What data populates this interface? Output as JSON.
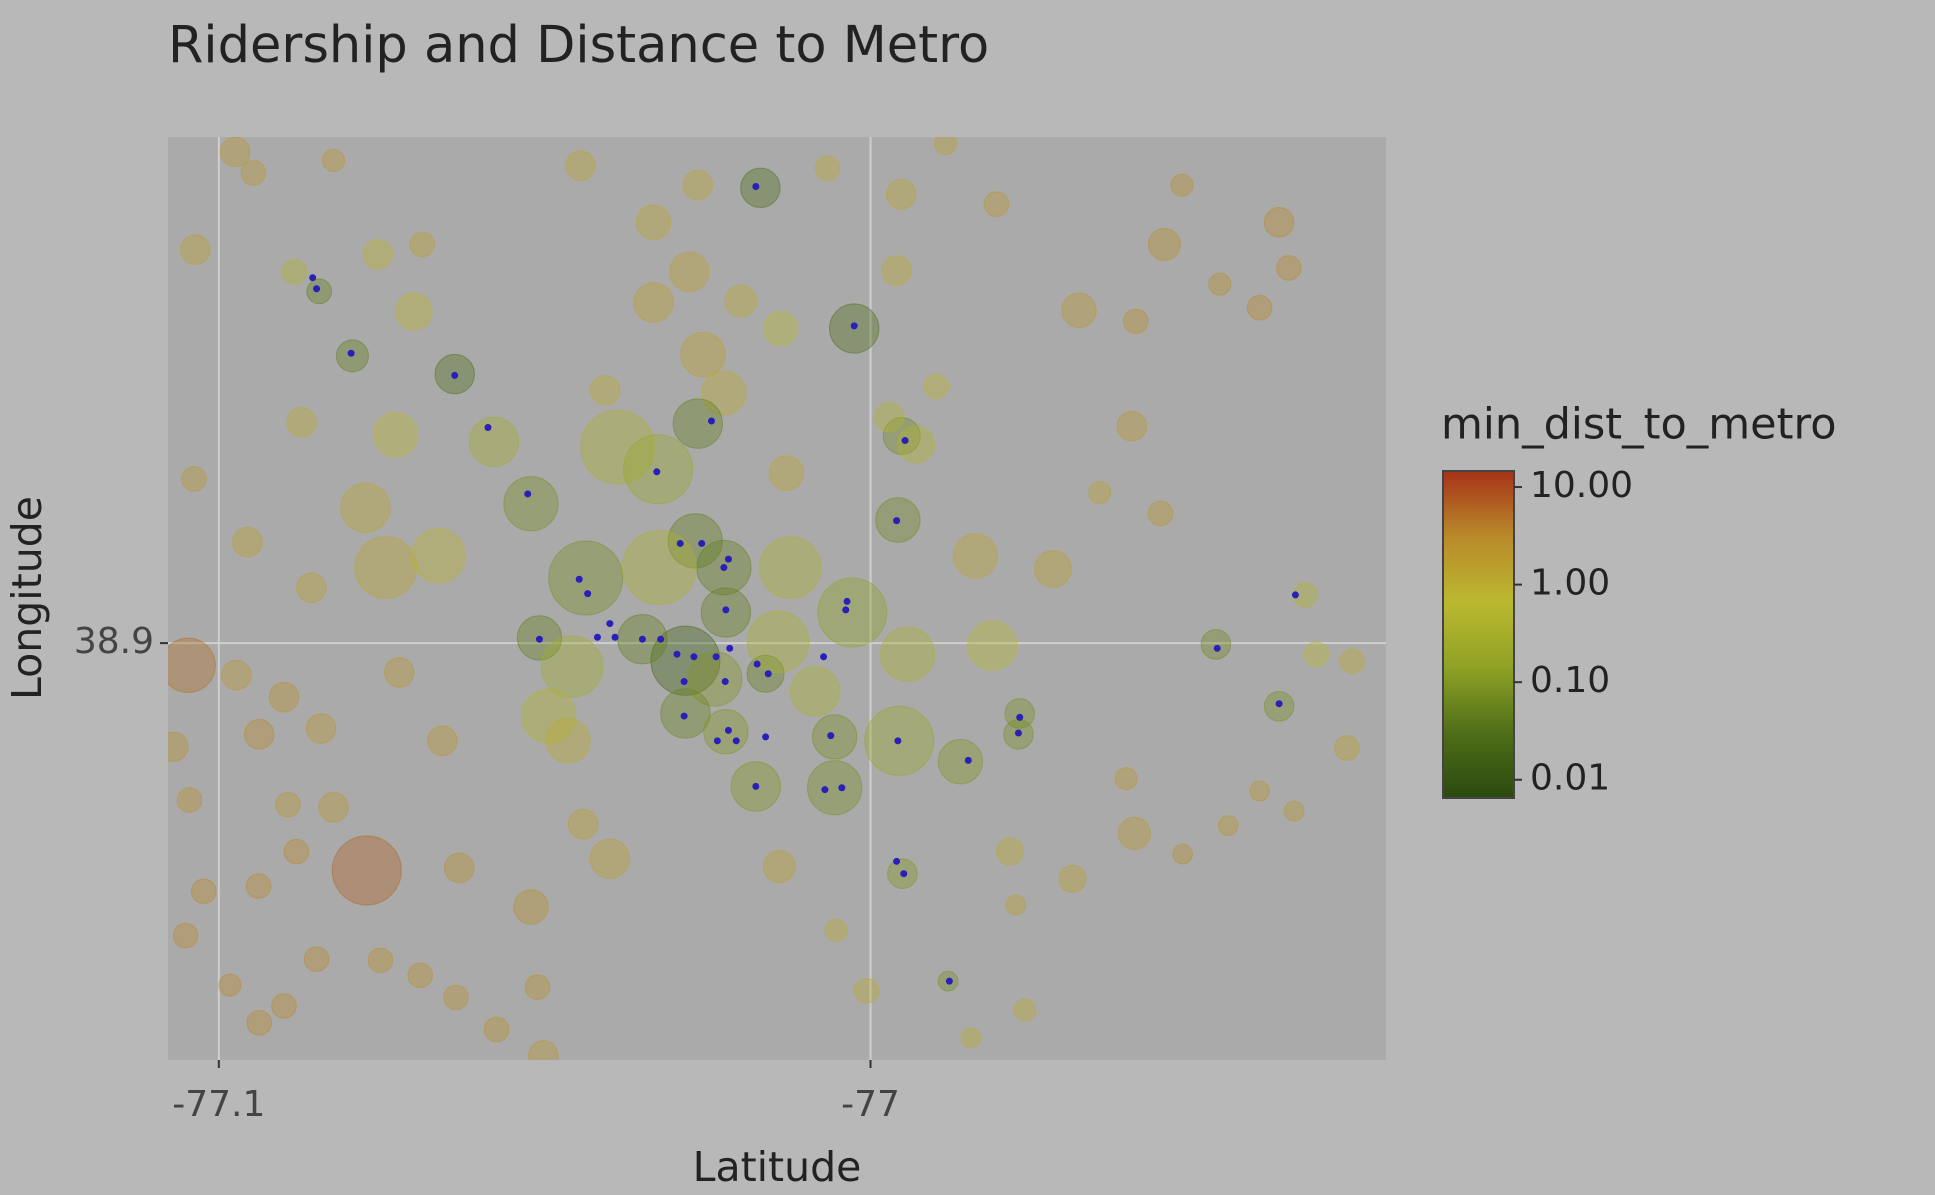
{
  "chart_data": {
    "type": "scatter",
    "title": "Ridership and Distance to Metro",
    "xlabel": "Latitude",
    "ylabel": "Longitude",
    "xlim": [
      -77.1078,
      -76.9209
    ],
    "ylim": [
      38.836,
      38.9777
    ],
    "xticks": [
      -77.1,
      -77.0
    ],
    "yticks": [
      38.9
    ],
    "grid": true,
    "x": [
      -77.0975,
      -77.0947,
      -77.1036,
      -77.0884,
      -77.0846,
      -77.0795,
      -77.0638,
      -77.0756,
      -77.0688,
      -77.0701,
      -77.0873,
      -77.0729,
      -77.0578,
      -77.0775,
      -77.0521,
      -77.1038,
      -77.0956,
      -77.0858,
      -77.0744,
      -77.0663,
      -77.1047,
      -77.0973,
      -77.09,
      -77.0843,
      -77.0938,
      -77.0773,
      -77.0881,
      -77.0939,
      -77.1023,
      -77.1051,
      -77.0983,
      -77.09,
      -77.0938,
      -77.085,
      -77.0752,
      -77.0691,
      -77.0636,
      -77.0574,
      -77.0511,
      -77.0502,
      -77.0521,
      -77.0631,
      -77.0657,
      -77.0723,
      -77.0824,
      -77.0894,
      -77.107,
      -77.1045,
      -77.0437,
      -77.0508,
      -77.0458,
      -77.0494,
      -77.0464,
      -77.04,
      -77.0441,
      -77.0445,
      -77.0333,
      -77.0278,
      -77.0333,
      -77.0257,
      -77.0225,
      -77.0265,
      -77.0169,
      -77.0066,
      -76.9953,
      -77.0025,
      -76.996,
      -77.0138,
      -77.0199,
      -77.0388,
      -77.0326,
      -77.0265,
      -77.0407,
      -77.0129,
      -77.0269,
      -77.0225,
      -77.0324,
      -77.0222,
      -77.0284,
      -77.035,
      -77.0239,
      -77.0161,
      -77.0284,
      -77.0222,
      -77.0176,
      -77.0123,
      -77.0142,
      -77.0085,
      -77.0055,
      -77.0055,
      -77.0028,
      -76.9956,
      -76.9952,
      -76.9958,
      -76.9971,
      -76.993,
      -76.9899,
      -76.9943,
      -76.9862,
      -76.9951,
      -76.9881,
      -76.9839,
      -76.9813,
      -76.972,
      -76.9771,
      -76.9773,
      -76.968,
      -76.9599,
      -76.9549,
      -76.9522,
      -76.9464,
      -76.9403,
      -76.9373,
      -76.9358,
      -76.9555,
      -76.9648,
      -76.947,
      -76.9373,
      -76.9333,
      -76.9316,
      -76.9261,
      -76.9269,
      -76.9403,
      -76.9451,
      -76.9521,
      -76.9595,
      -76.9608,
      -76.969,
      -76.9777,
      -76.9786,
      -76.9763,
      -77.0006,
      -77.0053,
      -77.014,
      -76.9846,
      -76.9885,
      -76.9807,
      -76.9593,
      -76.935,
      -77.0824
    ],
    "y": [
      38.9754,
      38.9722,
      38.9604,
      38.957,
      38.954,
      38.9441,
      38.9413,
      38.9597,
      38.9612,
      38.9509,
      38.9339,
      38.932,
      38.9309,
      38.9208,
      38.9214,
      38.9252,
      38.9155,
      38.9085,
      38.9116,
      38.9134,
      38.8966,
      38.8951,
      38.8917,
      38.8869,
      38.886,
      38.8651,
      38.868,
      38.8627,
      38.8619,
      38.8551,
      38.8475,
      38.8443,
      38.8417,
      38.8515,
      38.8513,
      38.849,
      38.8456,
      38.8407,
      38.8472,
      38.8367,
      38.8595,
      38.8655,
      38.885,
      38.8955,
      38.8748,
      38.8752,
      38.8841,
      38.8759,
      38.91,
      38.9008,
      38.8964,
      38.8888,
      38.885,
      38.8669,
      38.8722,
      38.9733,
      38.9646,
      38.957,
      38.9523,
      38.9443,
      38.9384,
      38.9703,
      38.9699,
      38.9729,
      38.9689,
      38.9483,
      38.9572,
      38.9483,
      38.9525,
      38.9301,
      38.9267,
      38.9337,
      38.9388,
      38.9261,
      38.9157,
      38.9116,
      38.9116,
      38.9047,
      38.8973,
      38.9006,
      38.8945,
      38.8953,
      38.8892,
      38.8864,
      38.878,
      38.9116,
      38.9002,
      38.8926,
      38.8856,
      38.8778,
      38.9047,
      38.885,
      38.9318,
      38.9189,
      38.9347,
      38.9305,
      38.9394,
      38.8983,
      38.8818,
      38.8646,
      38.8481,
      38.9134,
      38.8996,
      38.9114,
      38.8892,
      38.886,
      38.9511,
      38.9333,
      38.9612,
      38.9703,
      38.9551,
      38.9515,
      38.9646,
      38.9576,
      38.9199,
      38.9231,
      38.8998,
      38.8903,
      38.9074,
      38.8983,
      38.8972,
      38.8839,
      38.8773,
      38.872,
      38.8676,
      38.8708,
      38.8792,
      38.8638,
      38.8598,
      38.868,
      38.8437,
      38.8466,
      38.8559,
      38.8657,
      38.8394,
      38.9767,
      38.9674,
      38.9494,
      38.8742,
      38.9741
    ],
    "sizes": [
      12,
      10,
      12,
      10,
      10,
      13,
      16,
      12,
      10,
      15,
      12,
      18,
      20,
      20,
      22,
      10,
      12,
      12,
      25,
      22,
      22,
      12,
      12,
      12,
      12,
      28,
      10,
      10,
      10,
      10,
      9,
      10,
      10,
      10,
      10,
      10,
      10,
      10,
      10,
      12,
      14,
      12,
      12,
      12,
      12,
      10,
      12,
      10,
      30,
      18,
      25,
      22,
      18,
      16,
      12,
      12,
      14,
      16,
      16,
      18,
      18,
      12,
      16,
      10,
      12,
      20,
      12,
      14,
      13,
      30,
      28,
      20,
      12,
      14,
      22,
      22,
      30,
      20,
      28,
      20,
      22,
      15,
      20,
      18,
      20,
      25,
      25,
      20,
      18,
      22,
      28,
      28,
      15,
      18,
      12,
      15,
      10,
      22,
      18,
      12,
      8,
      18,
      20,
      15,
      12,
      12,
      14,
      12,
      13,
      9,
      9,
      10,
      12,
      10,
      10,
      9,
      12,
      12,
      10,
      10,
      10,
      10,
      8,
      8,
      8,
      13,
      9,
      11,
      8,
      11,
      9,
      10,
      9,
      13,
      8,
      9,
      10,
      10,
      8,
      9
    ],
    "color_values": [
      2,
      2,
      1.5,
      0.5,
      0.05,
      0.05,
      0.03,
      0.8,
      1.5,
      0.8,
      1,
      0.7,
      0.3,
      1.2,
      0.08,
      2,
      1.5,
      1.5,
      1.2,
      0.8,
      5,
      2,
      2.5,
      2,
      3,
      6,
      3,
      3,
      3,
      3,
      3,
      3,
      3,
      3,
      2.5,
      2.5,
      2.5,
      2.5,
      2.5,
      2,
      2.5,
      2.5,
      2,
      2,
      2,
      2,
      2.5,
      2.5,
      0.08,
      0.05,
      0.3,
      0.5,
      1,
      1.5,
      1.5,
      1.2,
      1.2,
      1.5,
      1.5,
      1.5,
      1,
      1.2,
      0.03,
      1,
      1.2,
      0.03,
      1,
      0.6,
      1,
      0.4,
      0.2,
      0.05,
      1,
      1.2,
      0.05,
      0.05,
      0.4,
      0.05,
      0.02,
      0.05,
      0.1,
      0.05,
      0.06,
      0.1,
      0.1,
      0.4,
      0.4,
      0.4,
      0.08,
      0.08,
      0.15,
      0.2,
      0.07,
      0.07,
      0.5,
      0.5,
      0.8,
      0.4,
      0.1,
      0.1,
      0.08,
      1.2,
      0.6,
      1.5,
      0.08,
      0.08,
      2,
      2,
      2.5,
      2.5,
      2.5,
      3,
      3,
      3,
      2,
      1.5,
      0.07,
      0.08,
      0.5,
      0.7,
      1,
      1.5,
      2,
      2,
      2.5,
      2,
      2,
      1.5,
      1.5,
      1,
      1,
      1,
      1,
      1.5,
      1,
      1.5,
      2,
      2.5,
      2,
      2
    ],
    "colorbar": {
      "title": "min_dist_to_metro",
      "log": true,
      "lim": [
        0.0065,
        14.6
      ],
      "ticks": [
        {
          "value": 0.01,
          "label": "0.01"
        },
        {
          "value": 0.1,
          "label": "0.10"
        },
        {
          "value": 1,
          "label": "1.00"
        },
        {
          "value": 10,
          "label": "10.00"
        }
      ],
      "colors": [
        "#2b4a10",
        "#4f6e18",
        "#8fa226",
        "#bbb830",
        "#b98a2a",
        "#a63218"
      ]
    },
    "stations": {
      "color": "#2a1fb8",
      "x": [
        -77.0176,
        -77.0856,
        -77.085,
        -77.0797,
        -77.0638,
        -77.0587,
        -77.0526,
        -77.0244,
        -77.0328,
        -77.0025,
        -76.9947,
        -76.996,
        -77.0292,
        -77.0259,
        -77.0218,
        -77.0225,
        -77.0447,
        -77.0434,
        -77.0222,
        -77.0036,
        -77.0038,
        -77.0508,
        -77.0419,
        -77.04,
        -77.0392,
        -77.035,
        -77.0322,
        -77.0297,
        -77.0271,
        -77.0237,
        -77.0216,
        -77.0174,
        -77.0157,
        -77.0072,
        -77.0286,
        -77.0223,
        -77.0286,
        -77.0218,
        -77.0235,
        -77.0206,
        -77.0161,
        -77.0061,
        -76.9958,
        -76.985,
        -76.9771,
        -76.9773,
        -77.0176,
        -77.007,
        -77.0044,
        -76.996,
        -76.9949,
        -76.9879,
        -76.9468,
        -76.9373,
        -76.9348
      ],
      "y": [
        38.9701,
        38.9561,
        38.9544,
        38.9445,
        38.9411,
        38.9331,
        38.9229,
        38.9341,
        38.9263,
        38.9487,
        38.9311,
        38.9188,
        38.9153,
        38.9153,
        38.9129,
        38.9116,
        38.9098,
        38.9076,
        38.9051,
        38.9064,
        38.9051,
        38.9006,
        38.9009,
        38.903,
        38.9009,
        38.9006,
        38.9006,
        38.8983,
        38.8979,
        38.8979,
        38.8992,
        38.8968,
        38.8953,
        38.8979,
        38.8941,
        38.8941,
        38.8888,
        38.8866,
        38.885,
        38.885,
        38.8856,
        38.8858,
        38.885,
        38.882,
        38.8886,
        38.8862,
        38.878,
        38.8775,
        38.8778,
        38.8665,
        38.8646,
        38.8481,
        38.8992,
        38.8907,
        38.9074
      ]
    }
  }
}
